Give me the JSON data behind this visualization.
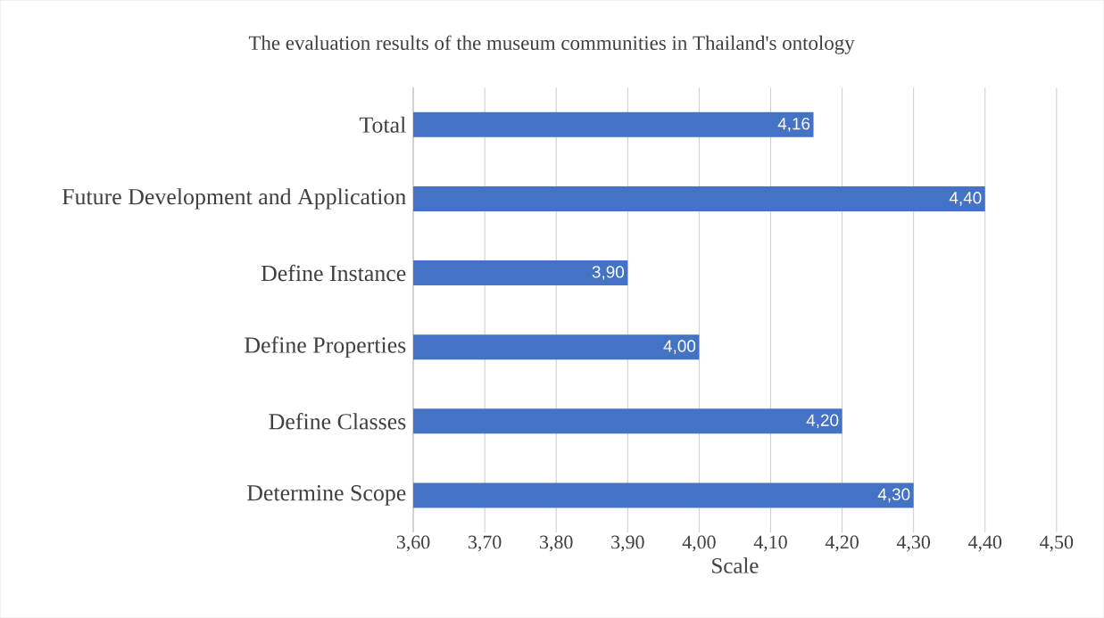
{
  "chart_data": {
    "type": "bar",
    "orientation": "horizontal",
    "title": "The evaluation results of the museum communities in Thailand's ontology",
    "xlabel": "Scale",
    "categories": [
      "Total",
      "Future Development and Application",
      "Define Instance",
      "Define Properties",
      "Define Classes",
      "Determine Scope"
    ],
    "values": [
      4.16,
      4.4,
      3.9,
      4.0,
      4.2,
      4.3
    ],
    "value_labels": [
      "4,16",
      "4,40",
      "3,90",
      "4,00",
      "4,20",
      "4,30"
    ],
    "color": "#4472c4",
    "xlim": [
      3.6,
      4.5
    ],
    "xticks": [
      {
        "value": 3.6,
        "label": "3,60"
      },
      {
        "value": 3.7,
        "label": "3,70"
      },
      {
        "value": 3.8,
        "label": "3,80"
      },
      {
        "value": 3.9,
        "label": "3,90"
      },
      {
        "value": 4.0,
        "label": "4,00"
      },
      {
        "value": 4.1,
        "label": "4,10"
      },
      {
        "value": 4.2,
        "label": "4,20"
      },
      {
        "value": 4.3,
        "label": "4,30"
      },
      {
        "value": 4.4,
        "label": "4,40"
      },
      {
        "value": 4.5,
        "label": "4,50"
      }
    ],
    "grid": "x"
  }
}
